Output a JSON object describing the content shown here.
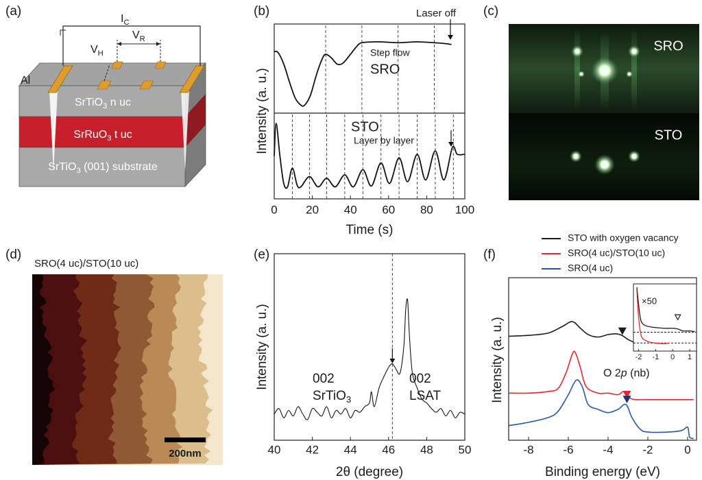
{
  "panel_labels": [
    "(a)",
    "(b)",
    "(c)",
    "(d)",
    "(e)",
    "(f)"
  ],
  "schematic": {
    "current": {
      "main": "I",
      "sub": "C"
    },
    "v_r": {
      "main": "V",
      "sub": "R"
    },
    "v_h": {
      "main": "V",
      "sub": "H"
    },
    "contact": "Al",
    "layers": [
      {
        "main": "SrTiO",
        "sub": "3",
        "rest": " n uc"
      },
      {
        "main": "SrRuO",
        "sub": "3",
        "rest": " t uc"
      },
      {
        "main": "SrTiO",
        "sub": "3",
        "rest": " (001) substrate"
      }
    ]
  },
  "rheed": {
    "labels": [
      "SRO",
      "STO"
    ]
  },
  "afm": {
    "title": "SRO(4 uc)/STO(10 uc)",
    "scale_bar": "200nm"
  },
  "chart_data": [
    {
      "type": "line",
      "xlabel": "Time (s)",
      "ylabel": "Intensity (a. u.)",
      "xlim": [
        0,
        100
      ],
      "xticks": [
        0,
        20,
        40,
        60,
        80,
        100
      ],
      "ylim": [
        0,
        1
      ],
      "series": [
        {
          "name": "SRO",
          "color": "#111111",
          "x": [
            0,
            2,
            5,
            8,
            11,
            14,
            16,
            19,
            22,
            25,
            27,
            30,
            33,
            36,
            40,
            43,
            46,
            55,
            65,
            75,
            84,
            90,
            93
          ],
          "values": [
            0.69,
            0.68,
            0.55,
            0.35,
            0.17,
            0.09,
            0.09,
            0.2,
            0.42,
            0.6,
            0.66,
            0.62,
            0.55,
            0.56,
            0.66,
            0.74,
            0.79,
            0.8,
            0.79,
            0.8,
            0.79,
            0.78,
            0.77
          ],
          "dashed_x": [
            27,
            46,
            65,
            84
          ]
        },
        {
          "name": "STO",
          "color": "#111111",
          "x": [
            0,
            1,
            3,
            5,
            7,
            9.5,
            12,
            14,
            18.5,
            23,
            27.5,
            32,
            37,
            41.5,
            46.5,
            51,
            56,
            60.5,
            65.5,
            70,
            75,
            79.5,
            84.5,
            89,
            93.5,
            96,
            100
          ],
          "values": [
            0.5,
            0.88,
            0.5,
            0.18,
            0.14,
            0.36,
            0.16,
            0.14,
            0.26,
            0.14,
            0.24,
            0.14,
            0.28,
            0.14,
            0.34,
            0.15,
            0.42,
            0.18,
            0.48,
            0.2,
            0.52,
            0.22,
            0.56,
            0.22,
            0.6,
            0.52,
            0.52
          ],
          "dashed_x": [
            9.5,
            18.5,
            27.5,
            37,
            46.5,
            56,
            65.5,
            75,
            84.5,
            94
          ]
        }
      ],
      "annotations": {
        "laser_off": "Laser off",
        "step_flow": "Step flow",
        "layer_by_layer": "Layer by layer"
      }
    },
    {
      "type": "line",
      "xlabel": "2θ (degree)",
      "ylabel": "Intensity (a. u.)",
      "xlim": [
        40,
        50
      ],
      "xticks": [
        40,
        42,
        44,
        46,
        48,
        50
      ],
      "ylim": [
        0,
        1
      ],
      "series": [
        {
          "color": "#111111",
          "x": [
            40,
            40.25,
            40.5,
            40.75,
            41,
            41.25,
            41.5,
            41.75,
            42,
            42.25,
            42.5,
            42.75,
            43,
            43.25,
            43.5,
            43.75,
            44,
            44.25,
            44.5,
            44.75,
            45,
            45.1,
            45.25,
            45.5,
            45.75,
            46,
            46.2,
            46.4,
            46.6,
            46.8,
            46.9,
            47,
            47.1,
            47.25,
            47.5,
            47.75,
            48,
            48.25,
            48.5,
            48.75,
            49,
            49.25,
            49.5,
            49.75,
            50
          ],
          "values": [
            0.14,
            0.17,
            0.12,
            0.16,
            0.13,
            0.18,
            0.14,
            0.11,
            0.17,
            0.15,
            0.13,
            0.18,
            0.12,
            0.16,
            0.14,
            0.17,
            0.12,
            0.16,
            0.15,
            0.18,
            0.2,
            0.26,
            0.18,
            0.28,
            0.34,
            0.39,
            0.41,
            0.38,
            0.36,
            0.5,
            0.7,
            0.75,
            0.55,
            0.36,
            0.28,
            0.22,
            0.2,
            0.17,
            0.15,
            0.17,
            0.13,
            0.16,
            0.12,
            0.15,
            0.14
          ]
        }
      ],
      "dashed_x": [
        46.2
      ],
      "annotations": {
        "sto": {
          "index": "002",
          "main": "SrTiO",
          "sub": "3"
        },
        "lsat": {
          "index": "002",
          "main": "LSAT"
        }
      }
    },
    {
      "type": "line",
      "xlabel": "Binding energy (eV)",
      "ylabel": "Intensity (a. u.)",
      "xlim": [
        -9,
        0.45
      ],
      "xticks": [
        -8,
        -6,
        -4,
        -2,
        0
      ],
      "ylim": [
        0,
        1
      ],
      "series": [
        {
          "name": "STO with oxygen vacancy",
          "color": "#1a1a1a",
          "x": [
            -9,
            -8,
            -7,
            -6.3,
            -5.8,
            -5.4,
            -5,
            -4.5,
            -4,
            -3.6,
            -3.3,
            -3,
            -2.7,
            -2.5
          ],
          "values": [
            0.64,
            0.645,
            0.66,
            0.7,
            0.73,
            0.69,
            0.65,
            0.635,
            0.65,
            0.655,
            0.645,
            0.62,
            0.6,
            0.56
          ],
          "marker": {
            "x": -3.28,
            "y": 0.67
          }
        },
        {
          "name": "SRO(4 uc)/STO(10 uc)",
          "color": "#e8262b",
          "x": [
            -9,
            -8,
            -7,
            -6.5,
            -6.1,
            -5.8,
            -5.65,
            -5.4,
            -5.1,
            -4.5,
            -4,
            -3.5,
            -3.2,
            -2.9,
            -2.6,
            -2,
            -1,
            0,
            0.3
          ],
          "values": [
            0.29,
            0.29,
            0.3,
            0.32,
            0.42,
            0.53,
            0.54,
            0.45,
            0.33,
            0.29,
            0.29,
            0.28,
            0.3,
            0.26,
            0.25,
            0.25,
            0.25,
            0.25,
            0.25
          ],
          "marker": {
            "x": -3.05,
            "y": 0.28
          }
        },
        {
          "name": "SRO(4 uc)",
          "color": "#2b56a8",
          "x": [
            -9,
            -8,
            -7,
            -6.5,
            -6,
            -5.6,
            -5.3,
            -5,
            -4.5,
            -4,
            -3.5,
            -3.1,
            -2.8,
            -2.4,
            -2,
            -1,
            -0.3,
            0,
            0.1,
            0.3
          ],
          "values": [
            0.09,
            0.11,
            0.14,
            0.18,
            0.28,
            0.37,
            0.33,
            0.22,
            0.19,
            0.17,
            0.19,
            0.22,
            0.14,
            0.07,
            0.05,
            0.05,
            0.06,
            0.08,
            0.02,
            0.01
          ],
          "marker": {
            "x": -3.05,
            "y": 0.25
          }
        }
      ],
      "band_label": {
        "before": "O 2",
        "italic": "p",
        "after": " (nb)"
      },
      "inset": {
        "label": "×50",
        "xlim": [
          -2.3,
          1.4
        ],
        "xticks": [
          -2,
          -1,
          0,
          1
        ],
        "ylim": [
          0,
          1
        ],
        "reference_y": [
          0.28,
          0.12
        ],
        "series": [
          {
            "color": "#1a1a1a",
            "x": [
              -2.1,
              -2,
              -1.9,
              -1.8,
              -1.6,
              -1.3,
              -1,
              -0.5,
              0,
              0.3,
              0.6,
              1,
              1.3
            ],
            "values": [
              0.95,
              0.7,
              0.5,
              0.42,
              0.38,
              0.36,
              0.35,
              0.34,
              0.34,
              0.33,
              0.3,
              0.3,
              0.29
            ],
            "marker": {
              "x": 0.3,
              "y": 0.5
            }
          },
          {
            "color": "#e8262b",
            "x": [
              -2.1,
              -2,
              -1.9,
              -1.8,
              -1.6,
              -1.3,
              -1,
              -0.5,
              -0.2
            ],
            "values": [
              0.9,
              0.5,
              0.3,
              0.2,
              0.16,
              0.13,
              0.12,
              0.11,
              0.12
            ]
          }
        ]
      }
    }
  ]
}
